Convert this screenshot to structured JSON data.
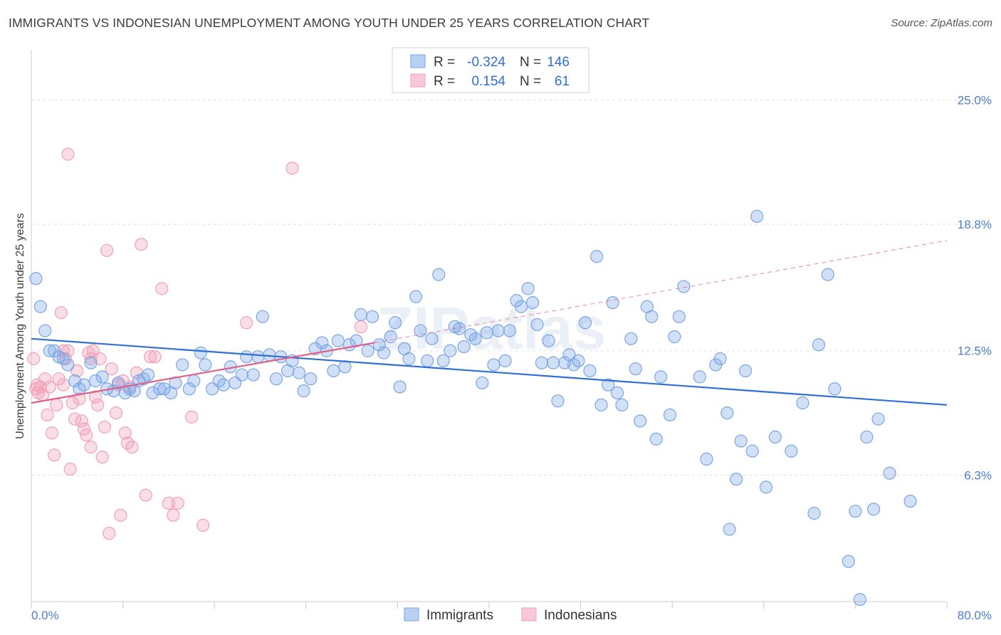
{
  "header": {
    "title": "IMMIGRANTS VS INDONESIAN UNEMPLOYMENT AMONG YOUTH UNDER 25 YEARS CORRELATION CHART",
    "source": "Source: ZipAtlas.com"
  },
  "watermark": "ZIPatlas",
  "colors": {
    "immigrants": "#7aa6e6",
    "immigrants_line": "#2f6fd6",
    "indonesians": "#f2a0b8",
    "indonesians_line": "#e0608a",
    "tick_text": "#4a7fd0"
  },
  "legend": {
    "rows": [
      {
        "r_label": "R =",
        "r_value": "-0.324",
        "n_label": "N =",
        "n_value": "146"
      },
      {
        "r_label": "R =",
        "r_value": "0.154",
        "n_label": "N =",
        "n_value": "61"
      }
    ]
  },
  "chart_data": {
    "type": "scatter",
    "title": "IMMIGRANTS VS INDONESIAN UNEMPLOYMENT AMONG YOUTH UNDER 25 YEARS CORRELATION CHART",
    "ylabel": "Unemployment Among Youth under 25 years",
    "xlim": [
      0,
      80
    ],
    "ylim": [
      0,
      27.5
    ],
    "x_tick_labels": [
      "0.0%",
      "80.0%"
    ],
    "y_ticks": [
      6.3,
      12.5,
      18.8,
      25.0
    ],
    "y_tick_labels": [
      "6.3%",
      "12.5%",
      "18.8%",
      "25.0%"
    ],
    "grid": true,
    "legend_position": "top-center",
    "series": [
      {
        "name": "Immigrants",
        "r": -0.324,
        "n": 146,
        "trend": {
          "x": [
            0,
            80
          ],
          "y": [
            13.1,
            9.8
          ],
          "dashed_extension": false
        },
        "points": [
          [
            0.4,
            16.1
          ],
          [
            0.8,
            14.7
          ],
          [
            1.2,
            13.5
          ],
          [
            1.6,
            12.5
          ],
          [
            2.0,
            12.5
          ],
          [
            2.4,
            12.2
          ],
          [
            2.8,
            12.1
          ],
          [
            3.2,
            11.8
          ],
          [
            3.8,
            11.0
          ],
          [
            4.2,
            10.6
          ],
          [
            4.6,
            10.8
          ],
          [
            5.2,
            11.9
          ],
          [
            5.6,
            11.0
          ],
          [
            6.2,
            11.2
          ],
          [
            6.6,
            10.6
          ],
          [
            7.2,
            10.5
          ],
          [
            7.6,
            10.9
          ],
          [
            8.2,
            10.4
          ],
          [
            8.6,
            10.6
          ],
          [
            9.0,
            10.5
          ],
          [
            9.4,
            11.0
          ],
          [
            9.8,
            11.1
          ],
          [
            10.2,
            11.3
          ],
          [
            10.6,
            10.4
          ],
          [
            11.2,
            10.6
          ],
          [
            11.6,
            10.6
          ],
          [
            12.2,
            10.4
          ],
          [
            12.6,
            10.9
          ],
          [
            13.2,
            11.8
          ],
          [
            13.8,
            10.6
          ],
          [
            14.2,
            11.0
          ],
          [
            14.8,
            12.4
          ],
          [
            15.2,
            11.8
          ],
          [
            15.8,
            10.6
          ],
          [
            16.4,
            11.0
          ],
          [
            16.8,
            10.8
          ],
          [
            17.4,
            11.7
          ],
          [
            17.8,
            10.9
          ],
          [
            18.4,
            11.3
          ],
          [
            18.8,
            12.2
          ],
          [
            19.4,
            11.3
          ],
          [
            19.8,
            12.2
          ],
          [
            20.2,
            14.2
          ],
          [
            20.8,
            12.3
          ],
          [
            21.4,
            11.1
          ],
          [
            21.8,
            12.2
          ],
          [
            22.4,
            11.5
          ],
          [
            22.8,
            12.0
          ],
          [
            23.4,
            11.4
          ],
          [
            23.8,
            10.5
          ],
          [
            24.4,
            11.1
          ],
          [
            24.8,
            12.6
          ],
          [
            25.4,
            12.9
          ],
          [
            25.8,
            12.5
          ],
          [
            26.4,
            11.5
          ],
          [
            26.8,
            13.0
          ],
          [
            27.4,
            11.7
          ],
          [
            27.8,
            12.8
          ],
          [
            28.4,
            13.0
          ],
          [
            28.8,
            14.3
          ],
          [
            29.4,
            12.5
          ],
          [
            29.8,
            14.2
          ],
          [
            30.4,
            12.8
          ],
          [
            30.8,
            12.4
          ],
          [
            31.4,
            13.2
          ],
          [
            31.8,
            13.9
          ],
          [
            32.2,
            10.7
          ],
          [
            32.6,
            12.6
          ],
          [
            33.0,
            12.1
          ],
          [
            33.6,
            15.2
          ],
          [
            34.0,
            13.5
          ],
          [
            34.6,
            12.0
          ],
          [
            35.0,
            13.1
          ],
          [
            35.6,
            16.3
          ],
          [
            36.0,
            12.0
          ],
          [
            36.6,
            12.5
          ],
          [
            37.0,
            13.7
          ],
          [
            37.4,
            13.6
          ],
          [
            37.8,
            12.7
          ],
          [
            38.4,
            13.3
          ],
          [
            38.8,
            13.1
          ],
          [
            39.4,
            10.9
          ],
          [
            39.8,
            13.4
          ],
          [
            40.4,
            11.8
          ],
          [
            40.8,
            13.5
          ],
          [
            41.4,
            12.0
          ],
          [
            41.8,
            13.5
          ],
          [
            42.4,
            15.0
          ],
          [
            42.8,
            14.7
          ],
          [
            43.4,
            15.6
          ],
          [
            43.8,
            14.9
          ],
          [
            44.2,
            13.8
          ],
          [
            44.6,
            11.9
          ],
          [
            45.2,
            13.0
          ],
          [
            45.6,
            11.9
          ],
          [
            46.0,
            10.0
          ],
          [
            46.6,
            11.9
          ],
          [
            47.0,
            12.3
          ],
          [
            47.4,
            11.8
          ],
          [
            47.8,
            12.0
          ],
          [
            48.4,
            13.9
          ],
          [
            48.8,
            11.5
          ],
          [
            49.4,
            17.2
          ],
          [
            49.8,
            9.8
          ],
          [
            50.4,
            10.8
          ],
          [
            50.8,
            14.9
          ],
          [
            51.2,
            10.4
          ],
          [
            51.6,
            9.8
          ],
          [
            52.4,
            13.1
          ],
          [
            52.8,
            11.6
          ],
          [
            53.2,
            9.0
          ],
          [
            53.8,
            14.7
          ],
          [
            54.2,
            14.2
          ],
          [
            54.6,
            8.1
          ],
          [
            55.0,
            11.2
          ],
          [
            55.8,
            9.3
          ],
          [
            56.2,
            13.2
          ],
          [
            56.6,
            14.2
          ],
          [
            57.0,
            15.7
          ],
          [
            58.4,
            11.2
          ],
          [
            59.0,
            7.1
          ],
          [
            59.8,
            11.8
          ],
          [
            60.2,
            12.1
          ],
          [
            60.8,
            9.4
          ],
          [
            61.6,
            6.1
          ],
          [
            62.0,
            8.0
          ],
          [
            62.4,
            11.5
          ],
          [
            63.0,
            7.5
          ],
          [
            63.4,
            19.2
          ],
          [
            64.2,
            5.7
          ],
          [
            65.0,
            8.2
          ],
          [
            66.4,
            7.5
          ],
          [
            67.4,
            9.9
          ],
          [
            68.4,
            4.4
          ],
          [
            68.8,
            12.8
          ],
          [
            69.6,
            16.3
          ],
          [
            70.2,
            10.6
          ],
          [
            71.4,
            2.0
          ],
          [
            72.0,
            4.5
          ],
          [
            72.4,
            0.1
          ],
          [
            73.0,
            8.2
          ],
          [
            73.6,
            4.6
          ],
          [
            74.0,
            9.1
          ],
          [
            75.0,
            6.4
          ],
          [
            76.8,
            5.0
          ],
          [
            61.0,
            3.6
          ]
        ]
      },
      {
        "name": "Indonesians",
        "r": 0.154,
        "n": 61,
        "trend": {
          "x": [
            0,
            30
          ],
          "y": [
            9.9,
            12.9
          ],
          "dashed_extension": {
            "x": [
              30,
              80
            ],
            "y": [
              12.9,
              18.0
            ]
          }
        },
        "points": [
          [
            0.2,
            12.1
          ],
          [
            0.4,
            10.6
          ],
          [
            0.5,
            10.8
          ],
          [
            0.6,
            10.4
          ],
          [
            0.8,
            10.7
          ],
          [
            1.0,
            10.3
          ],
          [
            1.2,
            11.1
          ],
          [
            1.4,
            9.3
          ],
          [
            1.6,
            10.7
          ],
          [
            1.8,
            8.4
          ],
          [
            2.0,
            7.3
          ],
          [
            2.2,
            9.8
          ],
          [
            2.4,
            11.1
          ],
          [
            2.6,
            14.4
          ],
          [
            2.8,
            10.8
          ],
          [
            3.0,
            12.1
          ],
          [
            3.2,
            12.5
          ],
          [
            3.4,
            6.6
          ],
          [
            3.6,
            9.9
          ],
          [
            3.8,
            9.1
          ],
          [
            4.0,
            11.5
          ],
          [
            4.2,
            10.1
          ],
          [
            4.4,
            9.0
          ],
          [
            4.6,
            8.6
          ],
          [
            4.8,
            8.3
          ],
          [
            5.0,
            12.4
          ],
          [
            5.2,
            7.7
          ],
          [
            5.4,
            12.5
          ],
          [
            5.6,
            10.2
          ],
          [
            5.8,
            9.8
          ],
          [
            6.0,
            12.1
          ],
          [
            6.2,
            7.2
          ],
          [
            6.4,
            8.7
          ],
          [
            6.6,
            17.5
          ],
          [
            6.8,
            3.4
          ],
          [
            7.0,
            11.6
          ],
          [
            7.4,
            9.4
          ],
          [
            7.6,
            10.8
          ],
          [
            7.8,
            4.3
          ],
          [
            8.0,
            11.0
          ],
          [
            8.2,
            8.4
          ],
          [
            8.4,
            7.9
          ],
          [
            8.6,
            10.7
          ],
          [
            8.8,
            7.7
          ],
          [
            9.2,
            11.4
          ],
          [
            9.6,
            17.8
          ],
          [
            10.0,
            5.3
          ],
          [
            10.4,
            12.2
          ],
          [
            10.8,
            12.2
          ],
          [
            11.4,
            15.6
          ],
          [
            12.0,
            4.9
          ],
          [
            12.4,
            4.3
          ],
          [
            12.8,
            4.9
          ],
          [
            14.0,
            9.2
          ],
          [
            15.0,
            3.8
          ],
          [
            18.8,
            13.9
          ],
          [
            22.8,
            21.6
          ],
          [
            28.8,
            13.7
          ],
          [
            3.2,
            22.3
          ],
          [
            5.2,
            12.1
          ],
          [
            2.8,
            12.5
          ]
        ]
      }
    ]
  },
  "bottom_legend": {
    "items": [
      {
        "label": "Immigrants"
      },
      {
        "label": "Indonesians"
      }
    ]
  }
}
